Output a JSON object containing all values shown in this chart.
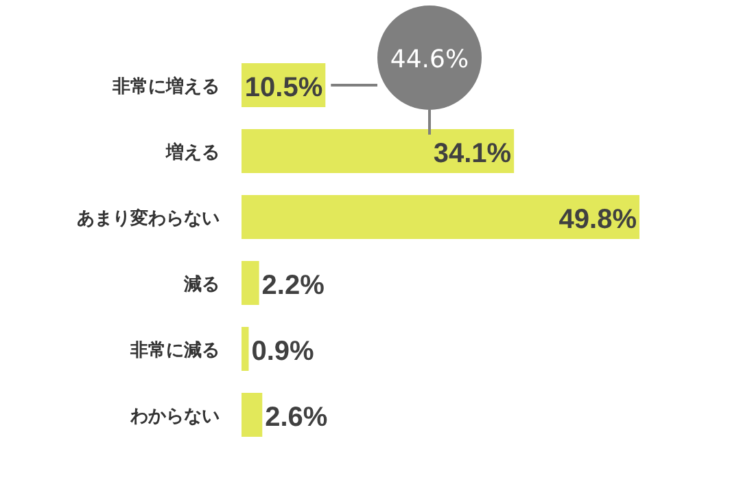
{
  "chart_data": {
    "type": "bar",
    "orientation": "horizontal",
    "categories": [
      "非常に増える",
      "増える",
      "あまり変わらない",
      "減る",
      "非常に減る",
      "わからない"
    ],
    "values": [
      10.5,
      34.1,
      49.8,
      2.2,
      0.9,
      2.6
    ],
    "color": "#e2e85a",
    "value_labels": [
      "10.5%",
      "34.1%",
      "49.8%",
      "2.2%",
      "0.9%",
      "2.6%"
    ],
    "annotations": [
      "44.6%"
    ]
  }
}
